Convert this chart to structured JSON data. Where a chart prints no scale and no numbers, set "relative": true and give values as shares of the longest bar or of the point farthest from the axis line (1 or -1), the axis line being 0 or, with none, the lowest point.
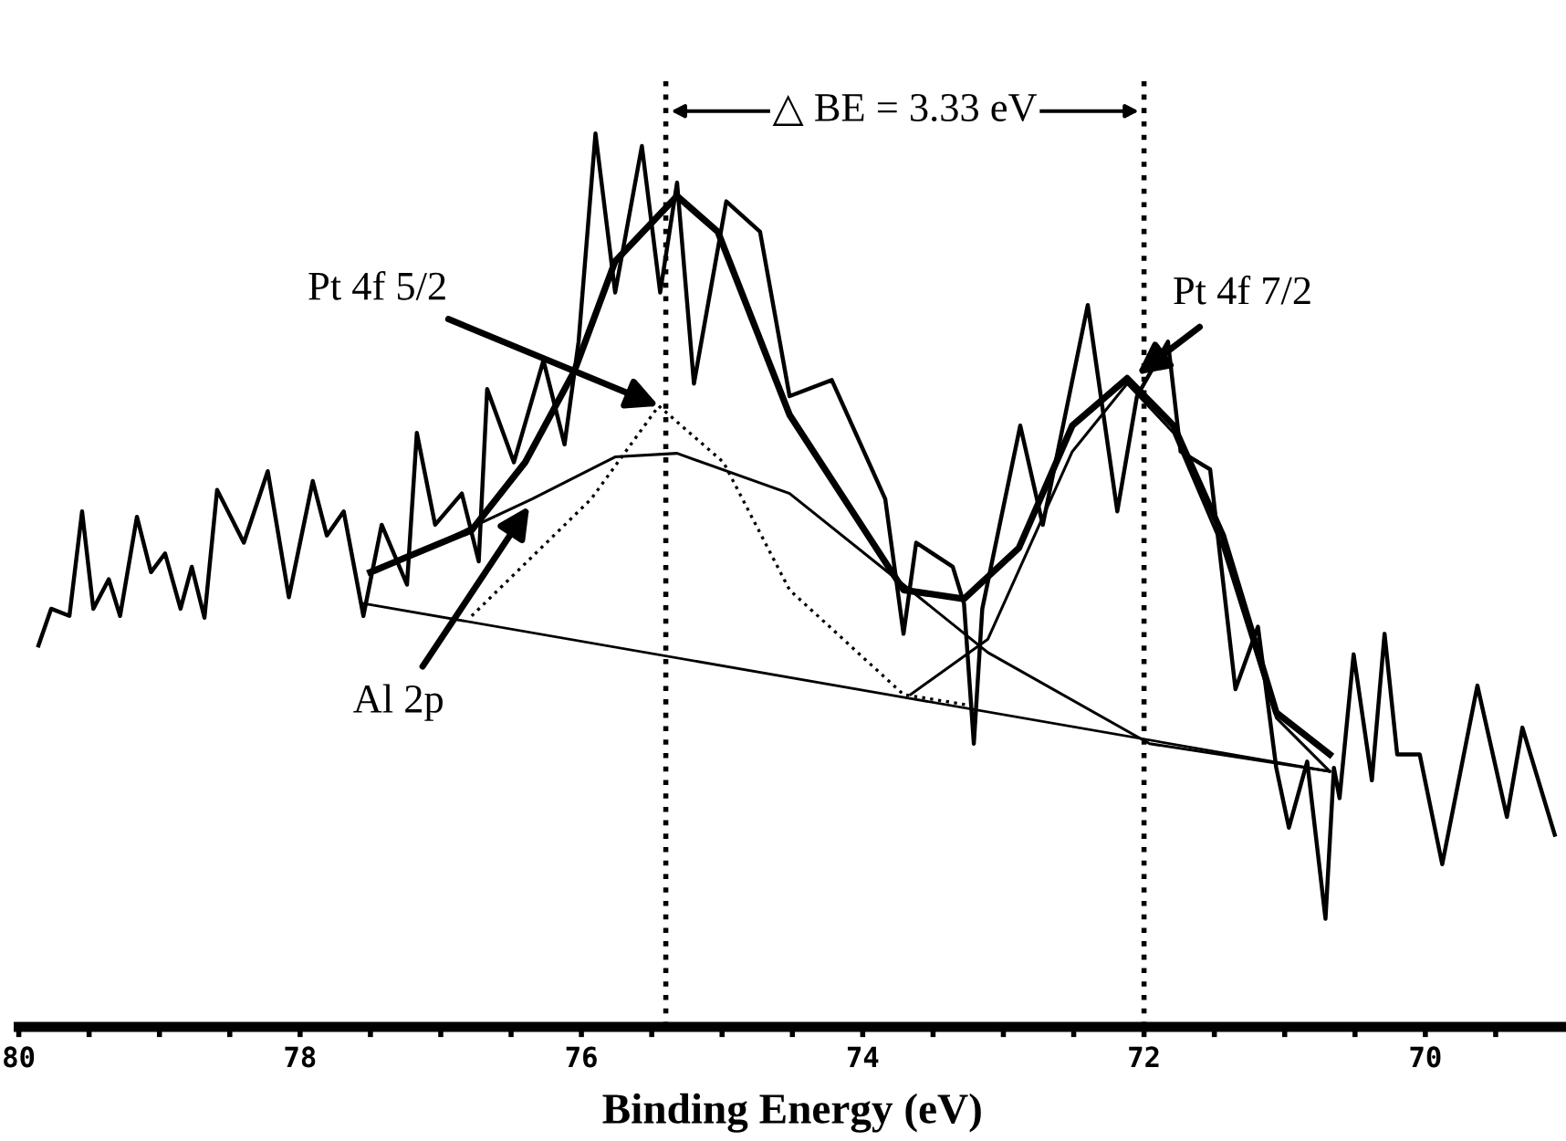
{
  "chart_data": {
    "type": "line",
    "relative": true,
    "xlabel": "Binding Energy (eV)",
    "xlim": [
      80,
      69
    ],
    "xticks": [
      80,
      {
        "value": 79.5,
        "label": null
      },
      {
        "value": 79,
        "label": null
      },
      {
        "value": 78.5,
        "label": null
      },
      78,
      {
        "value": 77.5,
        "label": null
      },
      {
        "value": 77,
        "label": null
      },
      {
        "value": 76.5,
        "label": null
      },
      76,
      {
        "value": 75.5,
        "label": null
      },
      {
        "value": 75,
        "label": null
      },
      {
        "value": 74.5,
        "label": null
      },
      74,
      {
        "value": 73.5,
        "label": null
      },
      {
        "value": 73,
        "label": null
      },
      {
        "value": 72.5,
        "label": null
      },
      72,
      {
        "value": 71.5,
        "label": null
      },
      {
        "value": 71,
        "label": null
      },
      {
        "value": 70.5,
        "label": null
      },
      70,
      {
        "value": 69.5,
        "label": null
      }
    ],
    "tick_labels": "x",
    "grid": false,
    "marker": "none",
    "series": [
      {
        "color": "#000000",
        "line_style": "solid",
        "x": [
          79.86,
          79.77,
          79.64,
          79.55,
          79.47,
          79.36,
          79.28,
          79.16,
          79.06,
          78.96,
          78.85,
          78.77,
          78.68,
          78.59,
          78.4,
          78.23,
          78.08,
          77.91,
          77.81,
          77.69,
          77.55,
          77.42,
          77.24,
          77.17,
          77.04,
          76.85,
          76.73,
          76.67,
          76.48,
          76.27,
          76.12,
          76.02,
          75.9,
          75.76,
          75.57,
          75.44,
          75.32,
          75.2,
          74.97,
          74.73,
          74.52,
          74.22,
          73.84,
          73.71,
          73.62,
          73.36,
          73.28,
          73.21,
          73.15,
          72.88,
          72.72,
          72.4,
          72.19,
          72.05,
          71.83,
          71.74,
          71.53,
          71.35,
          71.19,
          71.06,
          70.97,
          70.84,
          70.71,
          70.65,
          70.61,
          70.51,
          70.38,
          70.29,
          70.2,
          70.04,
          69.88,
          69.63,
          69.42,
          69.31,
          69.08
        ],
        "values": [
          0.427,
          0.468,
          0.46,
          0.577,
          0.468,
          0.501,
          0.46,
          0.571,
          0.509,
          0.53,
          0.468,
          0.515,
          0.458,
          0.601,
          0.542,
          0.622,
          0.481,
          0.611,
          0.55,
          0.577,
          0.46,
          0.562,
          0.495,
          0.665,
          0.562,
          0.597,
          0.521,
          0.714,
          0.632,
          0.746,
          0.652,
          0.767,
          1.0,
          0.822,
          0.986,
          0.822,
          0.945,
          0.72,
          0.924,
          0.89,
          0.706,
          0.724,
          0.591,
          0.44,
          0.542,
          0.515,
          0.474,
          0.317,
          0.468,
          0.673,
          0.562,
          0.808,
          0.577,
          0.706,
          0.767,
          0.644,
          0.624,
          0.378,
          0.448,
          0.29,
          0.223,
          0.297,
          0.121,
          0.29,
          0.256,
          0.417,
          0.276,
          0.44,
          0.305,
          0.305,
          0.182,
          0.382,
          0.235,
          0.335,
          0.215
        ]
      },
      {
        "color": "#000000",
        "line_style": "solid",
        "x": [
          77.5,
          76.78,
          76.4,
          76.05,
          75.76,
          75.32,
          75.03,
          74.52,
          73.71,
          73.28,
          72.89,
          72.51,
          72.12,
          71.79,
          71.44,
          71.06,
          70.68
        ],
        "values": [
          0.509,
          0.556,
          0.632,
          0.734,
          0.857,
          0.93,
          0.89,
          0.685,
          0.489,
          0.479,
          0.536,
          0.673,
          0.726,
          0.673,
          0.55,
          0.352,
          0.305
        ]
      },
      {
        "color": "#000000",
        "line_style": "dotted",
        "x": [
          76.78,
          75.93,
          75.45,
          74.99,
          74.52,
          73.71,
          73.24
        ],
        "values": [
          0.46,
          0.591,
          0.695,
          0.632,
          0.489,
          0.372,
          0.36
        ]
      },
      {
        "color": "#000000",
        "line_style": "solid",
        "x": [
          77.46,
          76.35,
          75.76,
          75.32,
          74.52,
          73.71,
          73.11,
          71.96,
          70.68
        ],
        "values": [
          0.509,
          0.591,
          0.638,
          0.642,
          0.597,
          0.495,
          0.419,
          0.317,
          0.286
        ]
      },
      {
        "color": "#000000",
        "line_style": "solid",
        "x": [
          73.66,
          73.11,
          72.51,
          72.12,
          71.79,
          71.44,
          71.06,
          70.68
        ],
        "values": [
          0.372,
          0.434,
          0.644,
          0.72,
          0.665,
          0.536,
          0.346,
          0.286
        ]
      },
      {
        "color": "#000000",
        "line_style": "solid",
        "x": [
          77.55,
          70.68
        ],
        "values": [
          0.474,
          0.286
        ]
      }
    ],
    "ref_lines": [
      {
        "axis": "x",
        "value": 75.4,
        "color": "#000000",
        "line_style": "dotted"
      },
      {
        "axis": "x",
        "value": 72.0,
        "color": "#000000",
        "line_style": "dotted"
      }
    ],
    "annotations": [
      "△ BE = 3.33 eV",
      {
        "text": "Pt 4f 5/2",
        "x": 75.45,
        "y": 0.695
      },
      {
        "text": "Pt 4f 7/2",
        "x": 72.05,
        "y": 0.73
      },
      {
        "text": "Al 2p",
        "x": 76.37,
        "y": 0.583
      }
    ]
  }
}
